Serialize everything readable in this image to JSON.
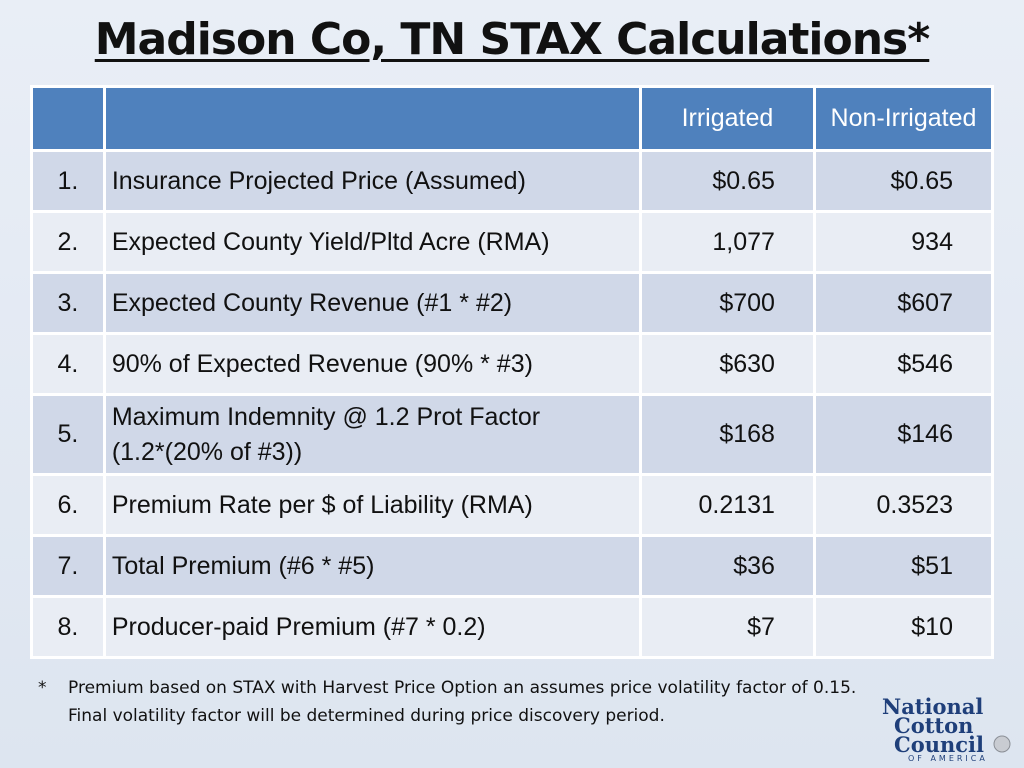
{
  "title": "Madison Co, TN STAX Calculations*",
  "table": {
    "headers": {
      "num": "",
      "desc": "",
      "irrigated": "Irrigated",
      "non_irrigated": "Non-Irrigated"
    },
    "rows": [
      {
        "num": "1.",
        "desc": "Insurance Projected Price (Assumed)",
        "irrigated": "$0.65",
        "non_irrigated": "$0.65"
      },
      {
        "num": "2.",
        "desc": "Expected County Yield/Pltd Acre (RMA)",
        "irrigated": "1,077",
        "non_irrigated": "934"
      },
      {
        "num": "3.",
        "desc": "Expected County Revenue (#1 * #2)",
        "irrigated": "$700",
        "non_irrigated": "$607"
      },
      {
        "num": "4.",
        "desc": "90% of Expected Revenue (90% * #3)",
        "irrigated": "$630",
        "non_irrigated": "$546"
      },
      {
        "num": "5.",
        "desc_line1": "Maximum Indemnity @ 1.2 Prot Factor",
        "desc_line2": "(1.2*(20% of #3))",
        "irrigated": "$168",
        "non_irrigated": "$146"
      },
      {
        "num": "6.",
        "desc": "Premium Rate per $ of Liability (RMA)",
        "irrigated": "0.2131",
        "non_irrigated": "0.3523"
      },
      {
        "num": "7.",
        "desc": "Total Premium (#6 * #5)",
        "irrigated": "$36",
        "non_irrigated": "$51"
      },
      {
        "num": "8.",
        "desc": "Producer-paid Premium (#7 * 0.2)",
        "irrigated": "$7",
        "non_irrigated": "$10"
      }
    ]
  },
  "footnote": {
    "marker": "*",
    "text": "Premium based on STAX with Harvest Price Option an assumes price volatility factor of 0.15. Final volatility factor will be determined during price discovery period."
  },
  "logo": {
    "line1": "National",
    "line2": "Cotton",
    "line3": "Council",
    "line4": "OF AMERICA",
    "color": "#1f3f7a"
  }
}
